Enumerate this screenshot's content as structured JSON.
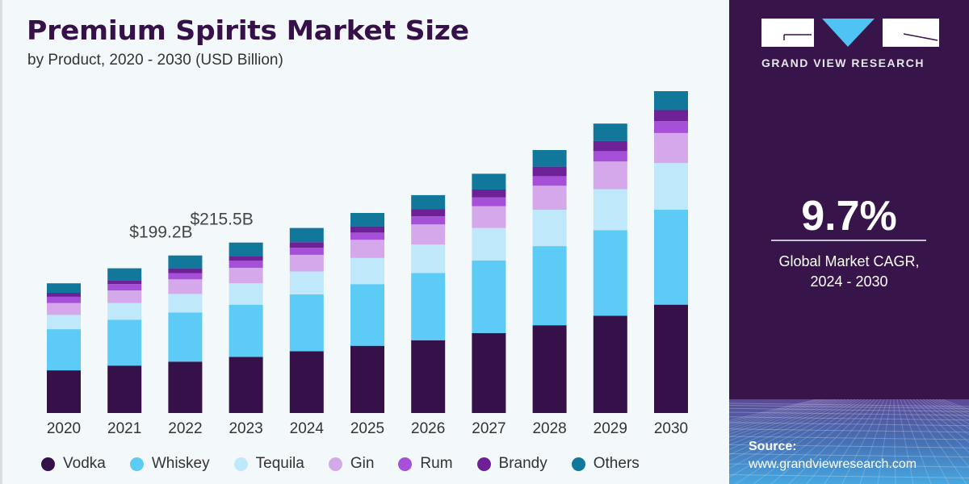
{
  "header": {
    "title": "Premium Spirits Market Size",
    "subtitle": "by Product, 2020 - 2030 (USD Billion)"
  },
  "sidebar": {
    "brand": "GRAND VIEW RESEARCH",
    "cagr_value": "9.7%",
    "cagr_label_line1": "Global Market CAGR,",
    "cagr_label_line2": "2024 - 2030",
    "source_label": "Source:",
    "source_url": "www.grandviewresearch.com",
    "brand_colors": {
      "background": "#371449",
      "logo_accent": "#4fc3f3"
    }
  },
  "chart_data": {
    "type": "bar",
    "stacked": true,
    "title": "Premium Spirits Market Size",
    "subtitle": "by Product, 2020 - 2030 (USD Billion)",
    "xlabel": "",
    "ylabel": "USD Billion",
    "ylim": [
      0,
      420
    ],
    "grid": false,
    "legend_position": "bottom",
    "categories": [
      "2020",
      "2021",
      "2022",
      "2023",
      "2024",
      "2025",
      "2026",
      "2027",
      "2028",
      "2029",
      "2030"
    ],
    "series": [
      {
        "name": "Vodka",
        "color": "#361049",
        "values": [
          54,
          60,
          65,
          71,
          78,
          85,
          92,
          101,
          111,
          123,
          137
        ]
      },
      {
        "name": "Whiskey",
        "color": "#5ccbf5",
        "values": [
          52,
          58,
          62,
          66,
          72,
          78,
          85,
          92,
          100,
          108,
          120
        ]
      },
      {
        "name": "Tequila",
        "color": "#bfe9fb",
        "values": [
          18,
          21,
          23.5,
          27,
          29,
          33,
          36,
          41,
          46,
          52,
          59
        ]
      },
      {
        "name": "Gin",
        "color": "#d5a8ec",
        "values": [
          15,
          16,
          18.5,
          19.5,
          21,
          23,
          25.5,
          27.5,
          30.5,
          35,
          38
        ]
      },
      {
        "name": "Rum",
        "color": "#a64fd8",
        "values": [
          8,
          8,
          8,
          9,
          9,
          9,
          10,
          11,
          12,
          13,
          15
        ]
      },
      {
        "name": "Brandy",
        "color": "#6e2197",
        "values": [
          5,
          5,
          6,
          6,
          7,
          8,
          9,
          10,
          12,
          13,
          14
        ]
      },
      {
        "name": "Others",
        "color": "#11789c",
        "values": [
          12,
          15,
          16.2,
          17,
          18,
          17,
          18,
          20,
          21,
          22,
          24
        ]
      }
    ],
    "annotations": [
      {
        "category": "2022",
        "text": "$199.2B",
        "value": 199.2
      },
      {
        "category": "2023",
        "text": "$215.5B",
        "value": 215.5
      }
    ]
  }
}
